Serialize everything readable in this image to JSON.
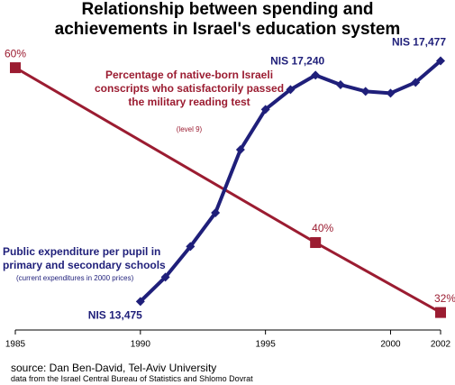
{
  "chart_data": {
    "type": "line",
    "title": "Relationship between spending and achievements in Israel's education system",
    "xlim": [
      1985,
      2002
    ],
    "xticks": [
      1985,
      1990,
      1995,
      2000,
      2002
    ],
    "ylim": [
      30,
      63
    ],
    "y2lim": [
      13000,
      17800
    ],
    "series": [
      {
        "name": "Percentage of native-born Israeli conscripts who satisfactorily passed the military reading test",
        "note": "(level 9)",
        "color": "#9b1c31",
        "x": [
          1985,
          1997,
          2002
        ],
        "values": [
          60,
          40,
          32
        ],
        "value_labels": [
          "60%",
          "40%",
          "32%"
        ]
      },
      {
        "name": "Public expenditure per pupil in primary and secondary schools",
        "note": "(current expenditures in 2000 prices)",
        "color": "#1f1f7a",
        "axis": "y2",
        "x": [
          1990,
          1991,
          1992,
          1993,
          1994,
          1995,
          1996,
          1997,
          1998,
          1999,
          2000,
          2001,
          2002
        ],
        "values": [
          13475,
          13880,
          14390,
          14950,
          16000,
          16670,
          17000,
          17240,
          17080,
          16970,
          16940,
          17120,
          17477
        ],
        "value_labels": [
          "NIS 13,475",
          null,
          null,
          null,
          null,
          null,
          null,
          "NIS 17,240",
          null,
          null,
          null,
          null,
          "NIS 17,477"
        ]
      }
    ],
    "source": "source: Dan Ben-David, Tel-Aviv University",
    "data_note": "data from the Israel Central Bureau of Statistics and Shlomo Dovrat"
  }
}
